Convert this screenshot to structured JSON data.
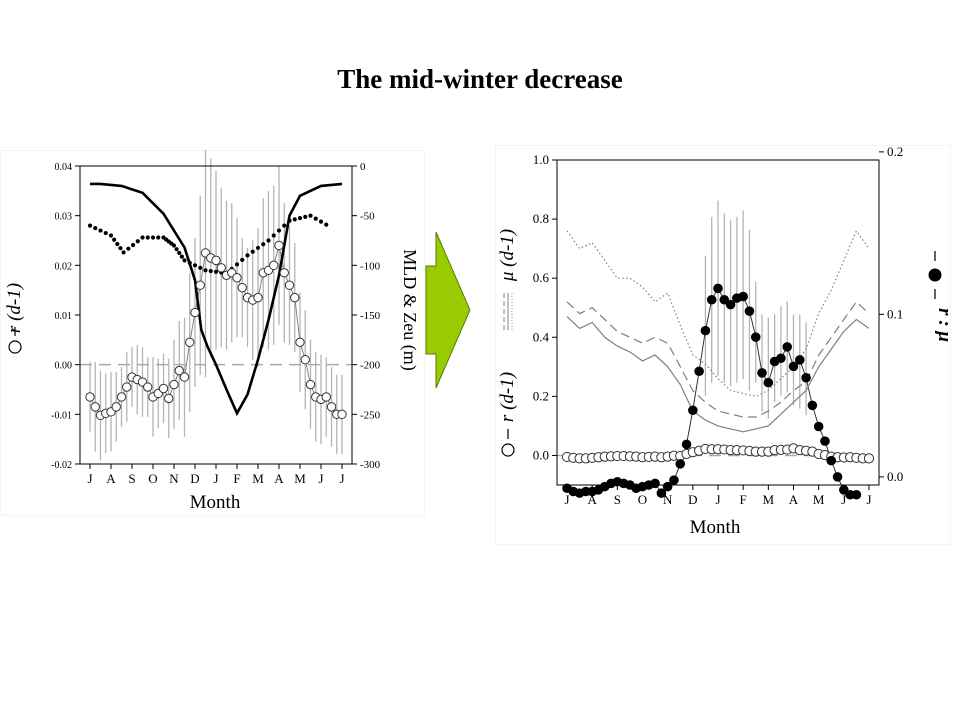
{
  "title": "The mid-winter decrease",
  "colors": {
    "arrow_fill": "#99cc00",
    "arrow_stroke": "#5a7a00",
    "point_dark": "#000000",
    "error_bar": "#b4b4b4",
    "gray_line": "#808080"
  },
  "arrow": {
    "icon": "right-arrow-icon"
  },
  "chart_data": [
    {
      "type": "line",
      "xlabel": "Month",
      "ylabel": "r (d-1)",
      "y2label": "MLD & Zeu (m)",
      "categories": [
        "J",
        "A",
        "S",
        "O",
        "N",
        "D",
        "J",
        "F",
        "M",
        "A",
        "M",
        "J",
        "J"
      ],
      "ylim": [
        -0.02,
        0.04
      ],
      "y2lim": [
        -300,
        0
      ],
      "yticks": [
        "-0.02",
        "-0.01",
        "0.00",
        "0.01",
        "0.02",
        "0.03",
        "0.04"
      ],
      "y2ticks": [
        "-300",
        "-250",
        "-200",
        "-150",
        "-100",
        "-50",
        "0"
      ],
      "zero_line": 0.0,
      "series": [
        {
          "marker": "open-circle",
          "x": [
            0.0,
            0.25,
            0.5,
            0.75,
            1.0,
            1.25,
            1.5,
            1.75,
            2.0,
            2.25,
            2.5,
            2.75,
            3.0,
            3.25,
            3.5,
            3.75,
            4.0,
            4.25,
            4.5,
            4.75,
            5.0,
            5.25,
            5.5,
            5.75,
            6.0,
            6.25,
            6.5,
            6.75,
            7.0,
            7.25,
            7.5,
            7.75,
            8.0,
            8.25,
            8.5,
            8.75,
            9.0,
            9.25,
            9.5,
            9.75,
            10.0,
            10.25,
            10.5,
            10.75,
            11.0,
            11.25,
            11.5,
            11.75,
            12.0
          ],
          "y": [
            -0.0065,
            -0.0085,
            -0.0102,
            -0.0098,
            -0.0095,
            -0.0085,
            -0.0065,
            -0.0045,
            -0.0025,
            -0.003,
            -0.0035,
            -0.0045,
            -0.0065,
            -0.0058,
            -0.0048,
            -0.0068,
            -0.004,
            -0.0012,
            -0.0025,
            0.0045,
            0.0105,
            0.016,
            0.0225,
            0.0215,
            0.021,
            0.0195,
            0.018,
            0.0185,
            0.0175,
            0.0155,
            0.0135,
            0.013,
            0.0135,
            0.0185,
            0.019,
            0.02,
            0.024,
            0.0185,
            0.016,
            0.0135,
            0.0045,
            0.001,
            -0.004,
            -0.0065,
            -0.007,
            -0.0065,
            -0.0085,
            -0.01,
            -0.01
          ],
          "err": [
            0.007,
            0.009,
            0.009,
            0.008,
            0.008,
            0.007,
            0.006,
            0.007,
            0.006,
            0.007,
            0.007,
            0.006,
            0.008,
            0.007,
            0.007,
            0.008,
            0.009,
            0.01,
            0.012,
            0.014,
            0.015,
            0.018,
            0.025,
            0.02,
            0.018,
            0.016,
            0.015,
            0.014,
            0.012,
            0.01,
            0.01,
            0.012,
            0.014,
            0.015,
            0.016,
            0.016,
            0.016,
            0.014,
            0.012,
            0.011,
            0.01,
            0.01,
            0.009,
            0.009,
            0.009,
            0.008,
            0.008,
            0.008,
            0.008
          ]
        },
        {
          "name": "MLD",
          "style": "solid",
          "axis": "right",
          "x": [
            0,
            0.5,
            1.5,
            2.5,
            3.5,
            4.5,
            5.0,
            5.3,
            5.6,
            6.0,
            6.5,
            7.0,
            7.5,
            8.0,
            8.5,
            9.0,
            9.5,
            10.0,
            11.0,
            12.0
          ],
          "y": [
            -18,
            -18,
            -20,
            -27,
            -48,
            -82,
            -115,
            -165,
            -182,
            -200,
            -225,
            -249,
            -230,
            -195,
            -155,
            -110,
            -50,
            -30,
            -20,
            -18
          ]
        },
        {
          "name": "Zeu",
          "style": "dotted",
          "axis": "right",
          "x": [
            0,
            1.0,
            1.6,
            2.5,
            3.5,
            4.0,
            4.5,
            5.5,
            6.5,
            7.5,
            8.5,
            9.5,
            10.5,
            11.5
          ],
          "y": [
            -60,
            -70,
            -87,
            -72,
            -72,
            -80,
            -95,
            -105,
            -108,
            -90,
            -75,
            -55,
            -50,
            -62
          ]
        }
      ]
    },
    {
      "type": "line",
      "xlabel": "Month",
      "ylabel": "r (d-1)",
      "ylabel2": "μ (d-1)",
      "y2label": "r : μ",
      "categories": [
        "J",
        "A",
        "S",
        "O",
        "N",
        "D",
        "J",
        "F",
        "M",
        "A",
        "M",
        "J",
        "J"
      ],
      "ylim": [
        -0.1,
        1.0
      ],
      "y2lim": [
        -0.005,
        0.195
      ],
      "yticks": [
        "0.0",
        "0.2",
        "0.4",
        "0.6",
        "0.8",
        "1.0"
      ],
      "y2ticks": [
        "0.0",
        "0.1",
        "0.2"
      ],
      "zero_line": 0.0,
      "series": [
        {
          "marker": "open-circle",
          "x": [
            0.0,
            0.25,
            0.5,
            0.75,
            1.0,
            1.25,
            1.5,
            1.75,
            2.0,
            2.25,
            2.5,
            2.75,
            3.0,
            3.25,
            3.5,
            3.75,
            4.0,
            4.25,
            4.5,
            4.75,
            5.0,
            5.25,
            5.5,
            5.75,
            6.0,
            6.25,
            6.5,
            6.75,
            7.0,
            7.25,
            7.5,
            7.75,
            8.0,
            8.25,
            8.5,
            8.75,
            9.0,
            9.25,
            9.5,
            9.75,
            10.0,
            10.25,
            10.5,
            10.75,
            11.0,
            11.25,
            11.5,
            11.75,
            12.0
          ],
          "y": [
            -0.005,
            -0.008,
            -0.01,
            -0.01,
            -0.008,
            -0.006,
            -0.004,
            -0.003,
            -0.002,
            -0.002,
            -0.003,
            -0.004,
            -0.006,
            -0.005,
            -0.004,
            -0.006,
            -0.004,
            -0.001,
            -0.002,
            0.005,
            0.011,
            0.016,
            0.022,
            0.021,
            0.021,
            0.02,
            0.018,
            0.018,
            0.017,
            0.015,
            0.013,
            0.013,
            0.013,
            0.018,
            0.019,
            0.02,
            0.024,
            0.018,
            0.016,
            0.013,
            0.005,
            0.001,
            -0.004,
            -0.006,
            -0.007,
            -0.006,
            -0.008,
            -0.01,
            -0.01
          ]
        },
        {
          "marker": "filled-circle",
          "axis": "right",
          "x": [
            0,
            0.25,
            0.5,
            0.75,
            1.0,
            1.25,
            1.5,
            1.75,
            2.0,
            2.25,
            2.5,
            2.75,
            3.0,
            3.25,
            3.5,
            3.75,
            4.0,
            4.25,
            4.5,
            4.75,
            5.0,
            5.25,
            5.5,
            5.75,
            6.0,
            6.25,
            6.5,
            6.75,
            7.0,
            7.25,
            7.5,
            7.75,
            8.0,
            8.25,
            8.5,
            8.75,
            9.0,
            9.25,
            9.5,
            9.75,
            10.0,
            10.25,
            10.5,
            10.75,
            11.0,
            11.25,
            11.5,
            11.75,
            12.0
          ],
          "y": [
            -0.007,
            -0.009,
            -0.01,
            -0.009,
            -0.009,
            -0.008,
            -0.006,
            -0.004,
            -0.003,
            -0.004,
            -0.005,
            -0.007,
            -0.006,
            -0.005,
            -0.004,
            -0.01,
            -0.006,
            -0.002,
            0.008,
            0.02,
            0.041,
            0.065,
            0.09,
            0.109,
            0.116,
            0.109,
            0.106,
            0.11,
            0.111,
            0.102,
            0.086,
            0.064,
            0.058,
            0.071,
            0.073,
            0.08,
            0.068,
            0.072,
            0.061,
            0.044,
            0.031,
            0.022,
            0.01,
            0.0,
            -0.008,
            -0.011,
            -0.011,
            null,
            null
          ],
          "err_x": [
            5.5,
            5.75,
            6.0,
            6.25,
            6.5,
            6.75,
            7.0,
            7.25,
            7.5,
            7.75,
            8.0,
            8.25,
            8.5,
            8.75,
            9.0,
            9.25,
            9.5
          ],
          "err_lo": [
            0.05,
            0.058,
            0.062,
            0.058,
            0.056,
            0.058,
            0.06,
            0.053,
            0.058,
            0.04,
            0.036,
            0.046,
            0.05,
            0.052,
            0.044,
            0.042,
            0.038
          ],
          "err_hi": [
            0.136,
            0.16,
            0.17,
            0.162,
            0.158,
            0.16,
            0.164,
            0.152,
            0.12,
            0.1,
            0.098,
            0.1,
            0.105,
            0.108,
            0.1,
            0.1,
            0.095
          ]
        },
        {
          "style": "dotted",
          "x": [
            0,
            0.5,
            1.0,
            1.5,
            2.0,
            2.5,
            3.0,
            3.5,
            4.0,
            4.5,
            5.0,
            5.5,
            6.0,
            6.5,
            7.0,
            7.5,
            8.0,
            8.5,
            9.0,
            9.5,
            10.0,
            10.5,
            11.0,
            11.5,
            12.0
          ],
          "y": [
            0.76,
            0.7,
            0.72,
            0.66,
            0.6,
            0.6,
            0.57,
            0.52,
            0.55,
            0.44,
            0.34,
            0.31,
            0.26,
            0.22,
            0.21,
            0.2,
            0.22,
            0.26,
            0.3,
            0.36,
            0.48,
            0.56,
            0.66,
            0.76,
            0.7
          ]
        },
        {
          "style": "dashed",
          "x": [
            0,
            0.5,
            1.0,
            1.5,
            2.0,
            2.5,
            3.0,
            3.5,
            4.0,
            4.5,
            5.0,
            5.5,
            6.0,
            6.5,
            7.0,
            7.5,
            8.0,
            8.5,
            9.0,
            9.5,
            10.0,
            10.5,
            11.0,
            11.5,
            12.0
          ],
          "y": [
            0.52,
            0.48,
            0.5,
            0.46,
            0.42,
            0.4,
            0.38,
            0.4,
            0.38,
            0.3,
            0.22,
            0.18,
            0.15,
            0.14,
            0.13,
            0.13,
            0.15,
            0.18,
            0.22,
            0.25,
            0.34,
            0.4,
            0.46,
            0.52,
            0.48
          ]
        },
        {
          "style": "solid",
          "x": [
            0,
            0.5,
            1.0,
            1.5,
            2.0,
            2.5,
            3.0,
            3.5,
            4.0,
            4.5,
            5.0,
            5.5,
            6.0,
            6.5,
            7.0,
            7.5,
            8.0,
            8.5,
            9.0,
            9.5,
            10.0,
            10.5,
            11.0,
            11.5,
            12.0
          ],
          "y": [
            0.47,
            0.43,
            0.45,
            0.4,
            0.37,
            0.35,
            0.32,
            0.34,
            0.3,
            0.24,
            0.15,
            0.12,
            0.1,
            0.09,
            0.08,
            0.09,
            0.1,
            0.14,
            0.18,
            0.22,
            0.3,
            0.36,
            0.42,
            0.46,
            0.43
          ]
        }
      ]
    }
  ]
}
